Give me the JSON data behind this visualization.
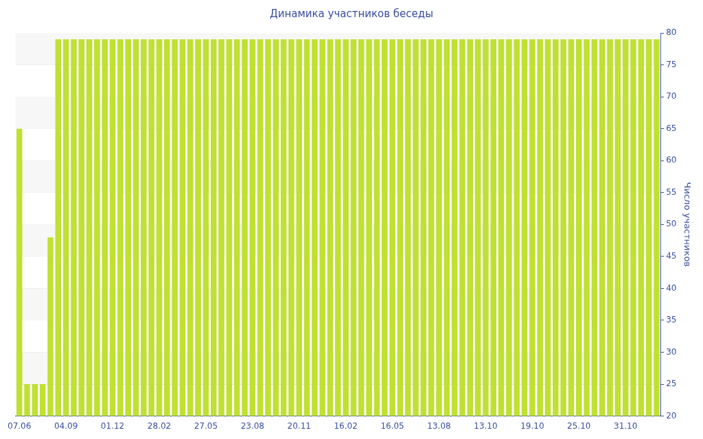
{
  "chart_data": {
    "type": "bar",
    "title": "Динамика участников беседы",
    "ylabel": "Число участников",
    "categories": [
      "07.06",
      null,
      null,
      null,
      null,
      null,
      "04.09",
      null,
      null,
      null,
      null,
      null,
      "01.12",
      null,
      null,
      null,
      null,
      null,
      "28.02",
      null,
      null,
      null,
      null,
      null,
      "27.05",
      null,
      null,
      null,
      null,
      null,
      "23.08",
      null,
      null,
      null,
      null,
      null,
      "20.11",
      null,
      null,
      null,
      null,
      null,
      "16.02",
      null,
      null,
      null,
      null,
      null,
      "16.05",
      null,
      null,
      null,
      null,
      null,
      "13.08",
      null,
      null,
      null,
      null,
      null,
      "13.10",
      null,
      null,
      null,
      null,
      null,
      "19.10",
      null,
      null,
      null,
      null,
      null,
      "25.10",
      null,
      null,
      null,
      null,
      null,
      "31.10",
      null,
      null,
      null,
      null
    ],
    "values": [
      65,
      25,
      25,
      25,
      48,
      79,
      79,
      79,
      79,
      79,
      79,
      79,
      79,
      79,
      79,
      79,
      79,
      79,
      79,
      79,
      79,
      79,
      79,
      79,
      79,
      79,
      79,
      79,
      79,
      79,
      79,
      79,
      79,
      79,
      79,
      79,
      79,
      79,
      79,
      79,
      79,
      79,
      79,
      79,
      79,
      79,
      79,
      79,
      79,
      79,
      79,
      79,
      79,
      79,
      79,
      79,
      79,
      79,
      79,
      79,
      79,
      79,
      79,
      79,
      79,
      79,
      79,
      79,
      79,
      79,
      79,
      79,
      79,
      79,
      79,
      79,
      79,
      79,
      79,
      79,
      79,
      79,
      79
    ],
    "color": "#c0e032",
    "ylim": [
      20,
      80
    ],
    "yticks": [
      20,
      25,
      30,
      35,
      40,
      45,
      50,
      55,
      60,
      65,
      70,
      75,
      80
    ],
    "grid": "y"
  }
}
